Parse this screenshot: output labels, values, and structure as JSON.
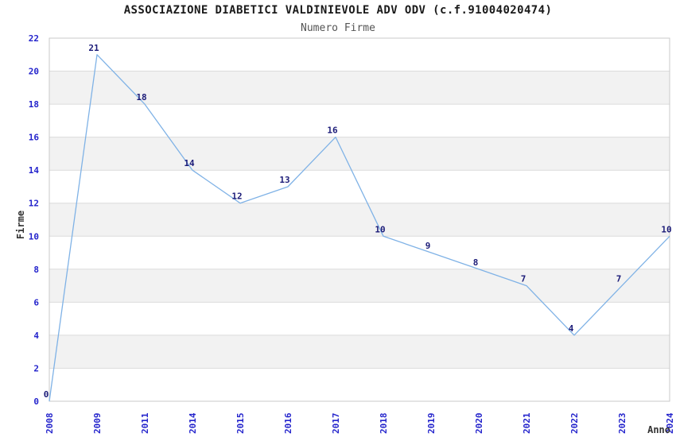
{
  "chart_data": {
    "type": "line",
    "title": "ASSOCIAZIONE DIABETICI VALDINIEVOLE ADV ODV (c.f.91004020474)",
    "subtitle": "Numero Firme",
    "xlabel": "Anno",
    "ylabel": "Firme",
    "categories": [
      "2008",
      "2009",
      "2011",
      "2014",
      "2015",
      "2016",
      "2017",
      "2018",
      "2019",
      "2020",
      "2021",
      "2022",
      "2023",
      "2024"
    ],
    "series": [
      {
        "name": "Numero Firme",
        "values": [
          0,
          21,
          18,
          14,
          12,
          13,
          16,
          10,
          9,
          8,
          7,
          4,
          7,
          10
        ]
      }
    ],
    "ylim": [
      0,
      22
    ],
    "ytick_step": 2,
    "grid": "horizontal gridlines with alternating shaded bands",
    "legend": "none",
    "data_labels": "shown above each point",
    "colors": {
      "line": "#7FB2E6",
      "data_label": "#1B1B78",
      "tick_label": "#2424CC",
      "axis_title": "#333333",
      "title": "#1A1A1A",
      "subtitle": "#555555",
      "band_fill": "#F2F2F2",
      "gridline": "#DCDCDC",
      "plot_border": "#C9C9C9",
      "background": "#FFFFFF"
    }
  }
}
